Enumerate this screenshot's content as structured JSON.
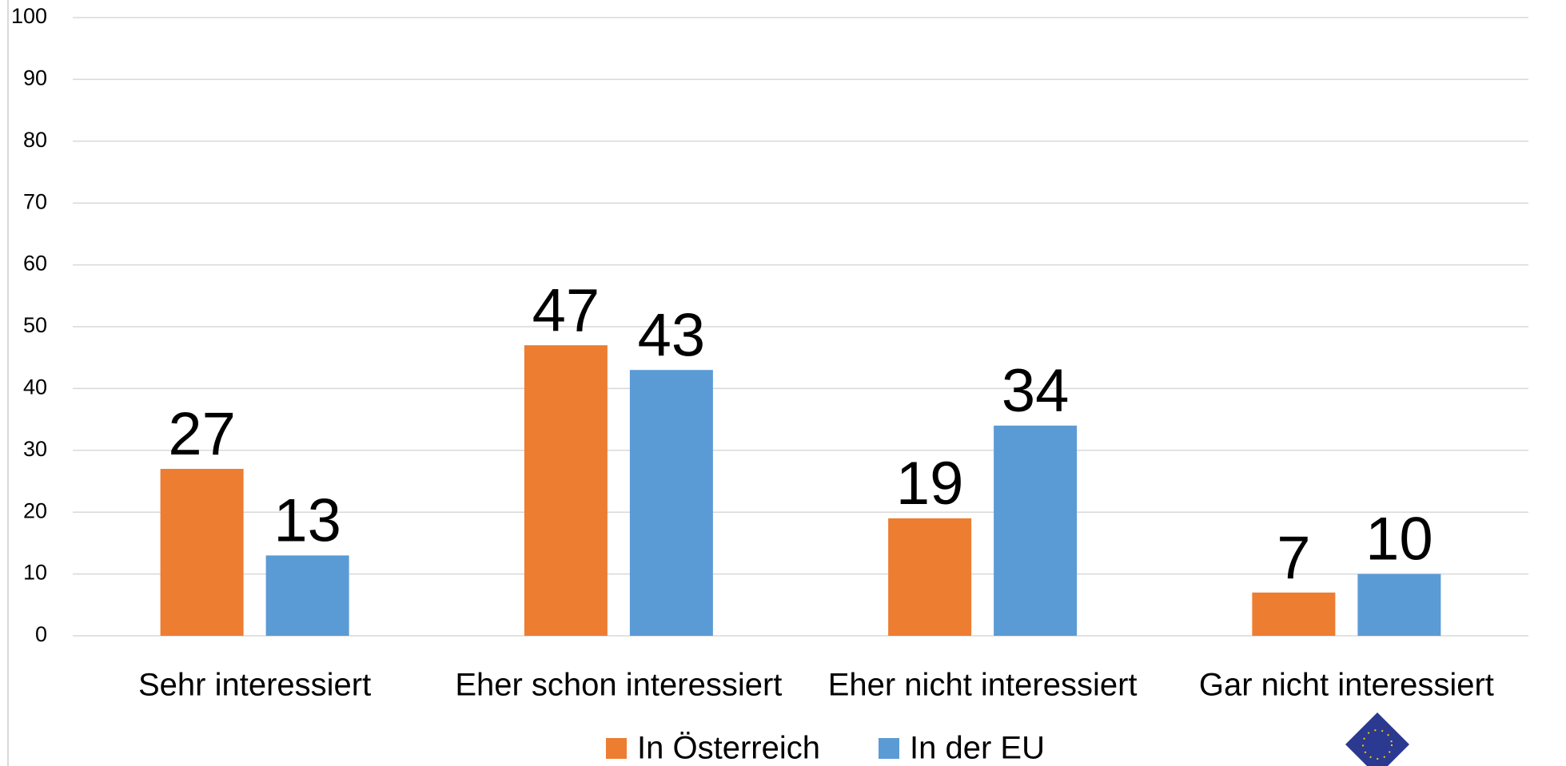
{
  "chart_data": {
    "type": "bar",
    "categories": [
      "Sehr interessiert",
      "Eher schon interessiert",
      "Eher nicht interessiert",
      "Gar nicht interessiert"
    ],
    "series": [
      {
        "name": "In Österreich",
        "color": "#ed7d31",
        "values": [
          27,
          47,
          19,
          7
        ]
      },
      {
        "name": "In der EU",
        "color": "#5b9bd5",
        "values": [
          13,
          43,
          34,
          10
        ]
      }
    ],
    "ylim": [
      0,
      100
    ],
    "yticks": [
      0,
      10,
      20,
      30,
      40,
      50,
      60,
      70,
      80,
      90,
      100
    ],
    "grid": true,
    "legend": "bottom"
  }
}
